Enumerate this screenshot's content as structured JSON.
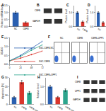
{
  "chart_data": [
    {
      "type": "bar",
      "title": "A",
      "y_label": "Relative mRNA level",
      "categories": [
        "NC",
        "CBFB"
      ],
      "values": [
        1.0,
        0.3
      ],
      "error": [
        0.08,
        0.05
      ],
      "colors": [
        "#2a5fb0",
        "#d9342b"
      ],
      "ylim": [
        0,
        1.5
      ],
      "yticks": [
        {
          "value": 0,
          "label": "0.0"
        },
        {
          "value": 0.5,
          "label": "0.5"
        },
        {
          "value": 1,
          "label": "1.0"
        },
        {
          "value": 1.5,
          "label": "1.5"
        }
      ]
    },
    {
      "type": "bar",
      "title": "C",
      "y_label": "Protein level",
      "categories": [
        "NC",
        "CBFB"
      ],
      "values": [
        1.0,
        0.35
      ],
      "error": [
        0.07,
        0.05
      ],
      "colors": [
        "#2a5fb0",
        "#d9342b"
      ],
      "ylim": [
        0,
        1.5
      ],
      "yticks": [
        {
          "value": 0,
          "label": "0.0"
        },
        {
          "value": 1,
          "label": "1.0"
        }
      ]
    },
    {
      "type": "bar",
      "title": "D",
      "y_label": "Protein level",
      "categories": [
        "NC",
        "CBFB"
      ],
      "values": [
        1.0,
        0.3
      ],
      "error": [
        0.06,
        0.05
      ],
      "colors": [
        "#2a5fb0",
        "#d9342b"
      ],
      "ylim": [
        0,
        1.5
      ],
      "yticks": [
        {
          "value": 0,
          "label": "0.0"
        },
        {
          "value": 1,
          "label": "1.0"
        }
      ]
    },
    {
      "type": "line",
      "title": "E",
      "y_label": "OD450",
      "x": [
        0,
        24,
        48,
        72
      ],
      "xlim": [
        0,
        72
      ],
      "xticks": [
        0,
        24,
        48,
        72
      ],
      "ylim": [
        0,
        1.5
      ],
      "yticks": [
        {
          "value": 0,
          "label": "0.0"
        },
        {
          "value": 0.5,
          "label": "0.5"
        },
        {
          "value": 1,
          "label": "1.0"
        },
        {
          "value": 1.5,
          "label": "1.5"
        }
      ],
      "legend": "upper left",
      "series": [
        {
          "name": "SGC-CBFB-NC",
          "color": "#2a5fb0",
          "values": [
            0.2,
            0.5,
            0.9,
            1.3
          ]
        },
        {
          "name": "SGC-CBFB",
          "color": "#d9342b",
          "values": [
            0.2,
            0.35,
            0.55,
            0.75
          ]
        },
        {
          "name": "SGC-CBFB+UPP1",
          "color": "#2ca58d",
          "values": [
            0.2,
            0.45,
            0.8,
            1.1
          ]
        }
      ]
    },
    {
      "type": "bar",
      "title": "G",
      "y_label": "Apoptosis (%)",
      "categories": [
        "NC",
        "CBFB",
        "CBFB+UPP1"
      ],
      "values": [
        8,
        25,
        13
      ],
      "error": [
        1,
        2,
        1.5
      ],
      "colors": [
        "#2a5fb0",
        "#d9342b",
        "#2ca58d"
      ],
      "ylim": [
        0,
        30
      ],
      "yticks": [
        0,
        10,
        20,
        30
      ]
    },
    {
      "type": "bar",
      "title": "H",
      "y_label": "Relative level",
      "categories": [
        "NC",
        "CBFB",
        "CBFB+UPP1"
      ],
      "values": [
        1.0,
        0.4,
        0.8
      ],
      "error": [
        0.08,
        0.05,
        0.07
      ],
      "colors": [
        "#2a5fb0",
        "#d9342b",
        "#2ca58d"
      ],
      "ylim": [
        0,
        1.5
      ],
      "yticks": [
        {
          "value": 0,
          "label": "0.0"
        },
        {
          "value": 1,
          "label": "1.0"
        }
      ]
    }
  ],
  "blots": [
    {
      "title": "B",
      "bands": [
        "CBFB",
        "GAPDH"
      ],
      "lanes": 2
    },
    {
      "title": "I",
      "bands": [
        "CBFB",
        "UPP1",
        "GAPDH"
      ],
      "lanes": 3
    }
  ],
  "flow": {
    "title": "F",
    "panels": [
      "NC",
      "CBFB",
      "CBFB+UPP1"
    ]
  }
}
